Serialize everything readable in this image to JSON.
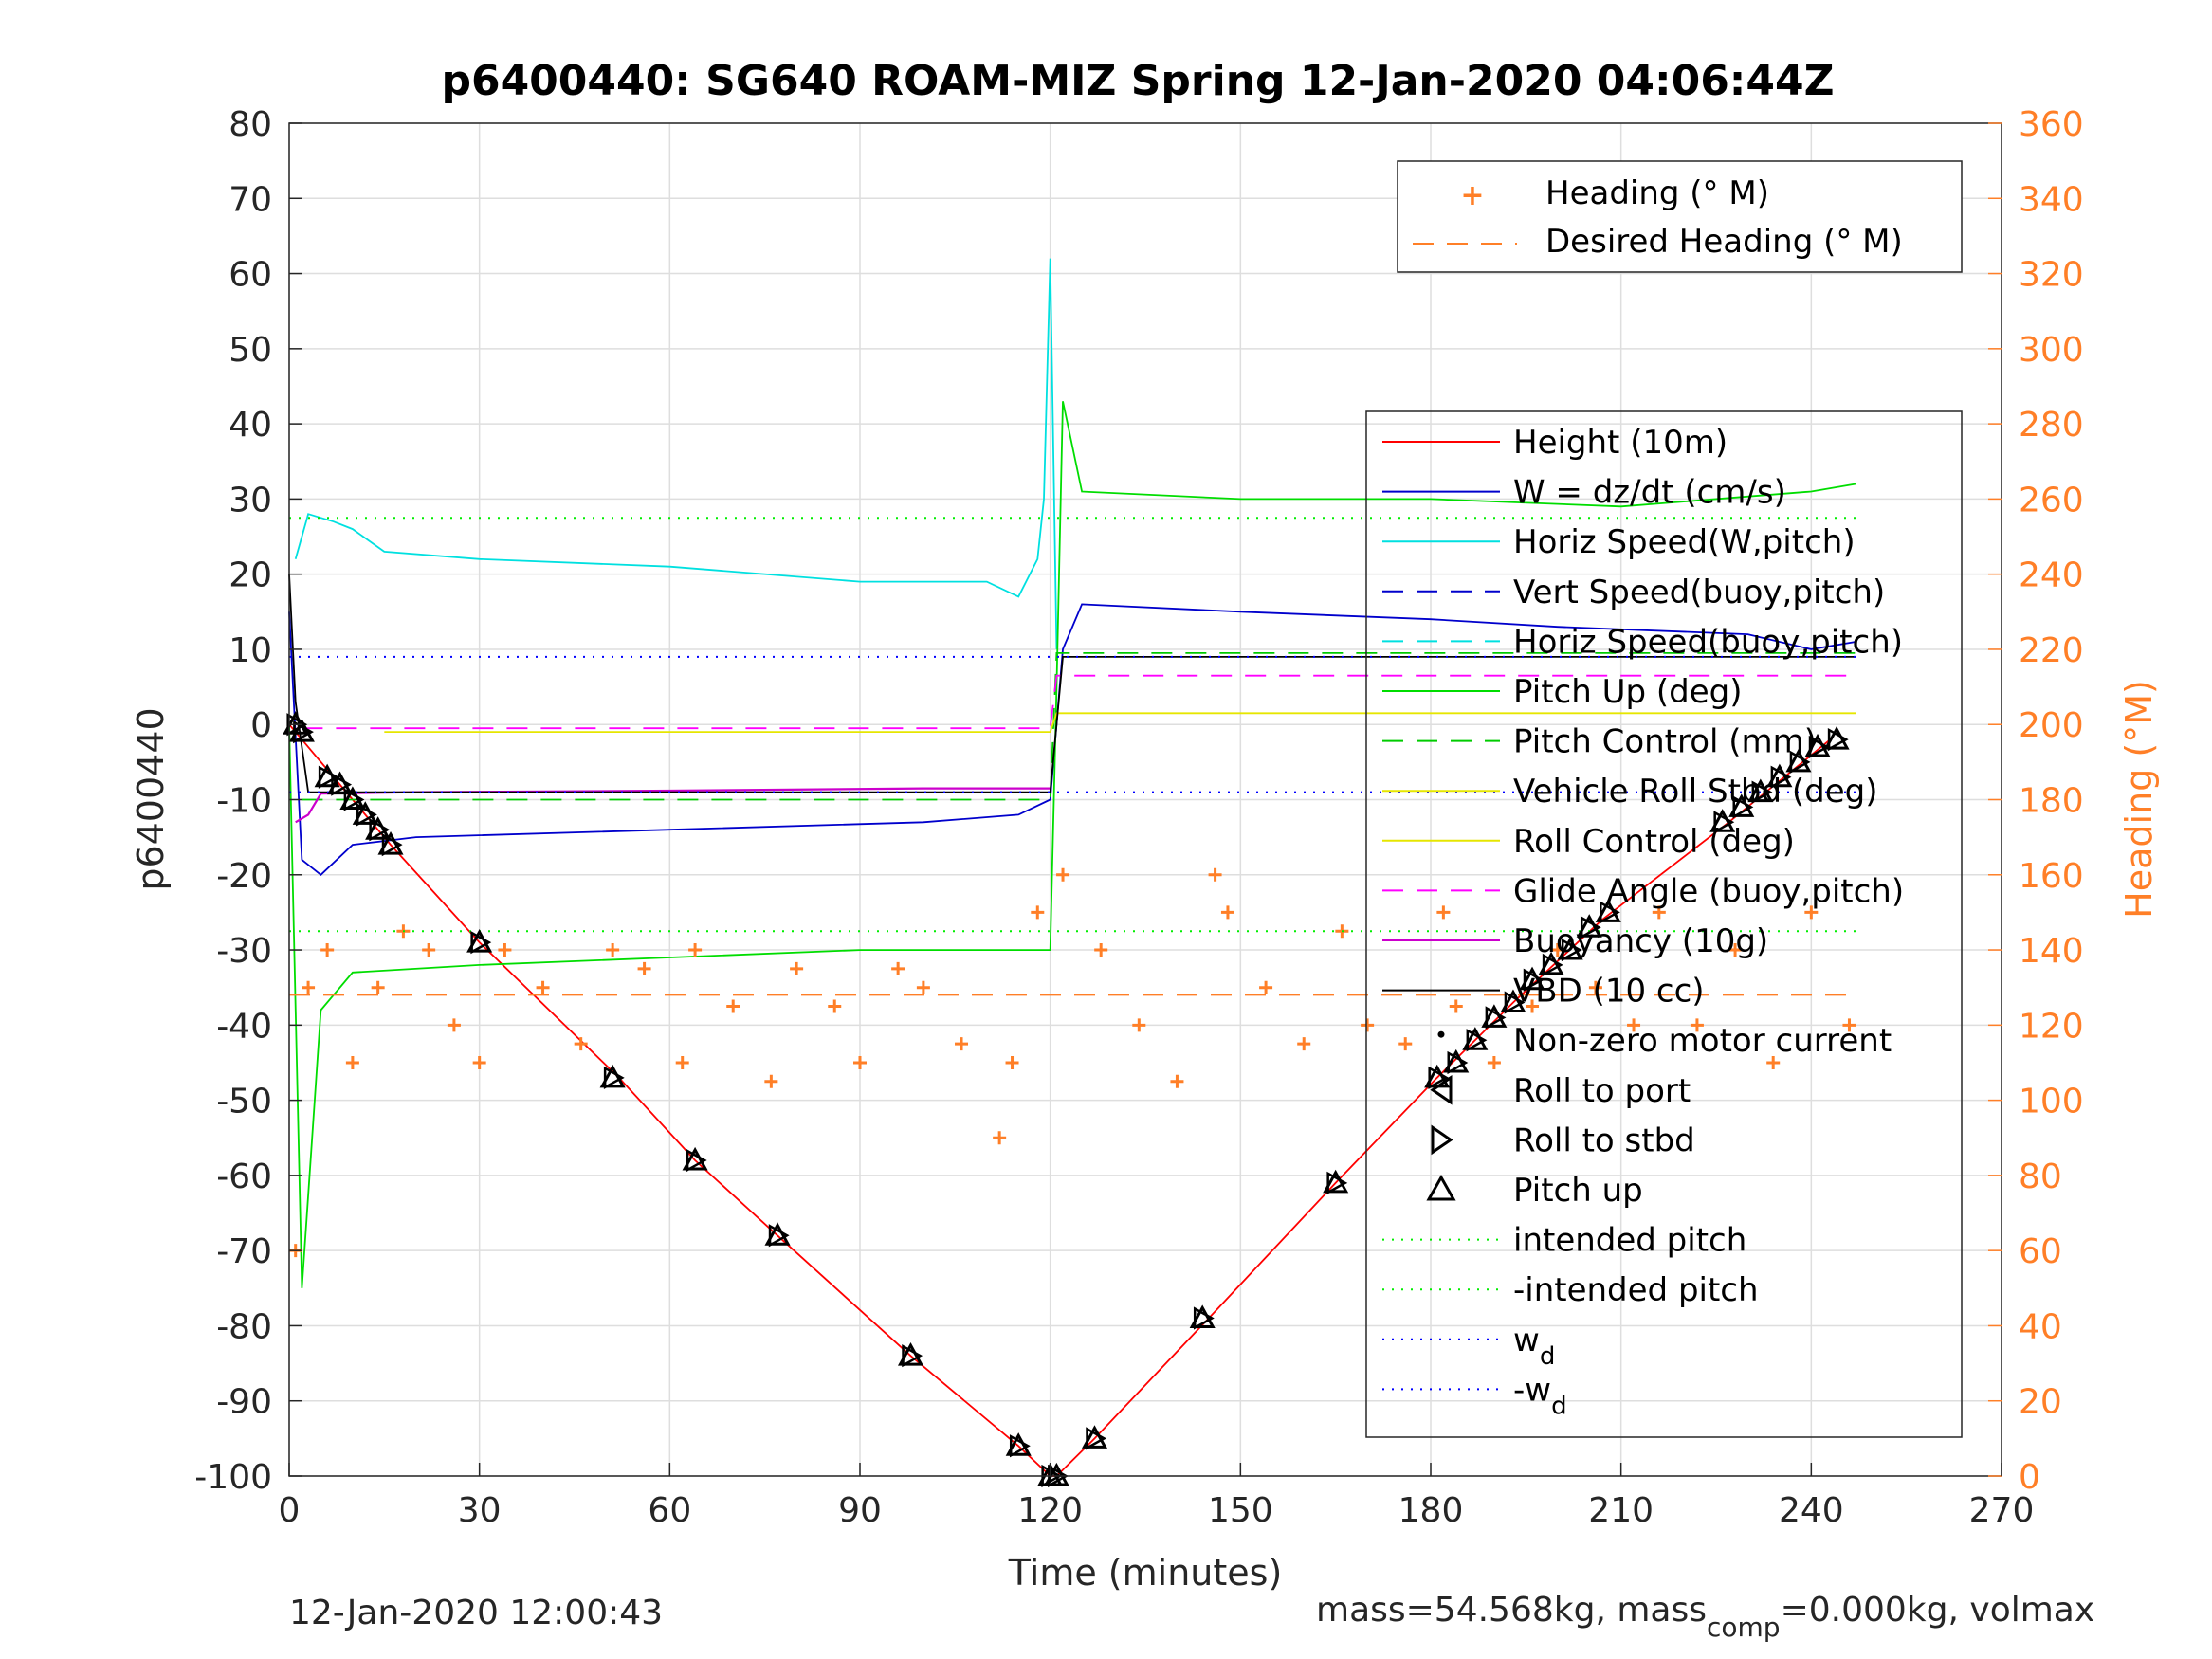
{
  "figure": {
    "title": "p6400440: SG640 ROAM-MIZ Spring 12-Jan-2020 04:06:44Z",
    "footer_left": "12-Jan-2020 12:00:43",
    "footer_right_prefix": "mass=54.568kg, mass",
    "footer_right_sub": "comp",
    "footer_right_suffix": "=0.000kg, volmax"
  },
  "chart_data": {
    "type": "line",
    "title": "p6400440: SG640 ROAM-MIZ Spring 12-Jan-2020 04:06:44Z",
    "xlabel": "Time (minutes)",
    "ylabel": "p6400440",
    "y2label": "Heading (°M)",
    "xlim": [
      0,
      270
    ],
    "ylim": [
      -100,
      80
    ],
    "y2lim": [
      0,
      360
    ],
    "xticks": [
      0,
      30,
      60,
      90,
      120,
      150,
      180,
      210,
      240,
      270
    ],
    "yticks": [
      -100,
      -90,
      -80,
      -70,
      -60,
      -50,
      -40,
      -30,
      -20,
      -10,
      0,
      10,
      20,
      30,
      40,
      50,
      60,
      70,
      80
    ],
    "y2ticks": [
      0,
      20,
      40,
      60,
      80,
      100,
      120,
      140,
      160,
      180,
      200,
      220,
      240,
      260,
      280,
      300,
      320,
      340,
      360
    ],
    "grid": true,
    "colors": {
      "height": "#ff0000",
      "w": "#0000cc",
      "horiz_speed": "#00e0e0",
      "pitch": "#00dd00",
      "roll": "#ffff00",
      "glide": "#ff00ff",
      "buoyancy": "#cc00cc",
      "vbd": "#000000",
      "heading": "#ff7f27",
      "wd": "#0000ff",
      "intended": "#00ee00"
    },
    "legend_heading": {
      "position": "top-right",
      "entries": [
        "Heading (° M)",
        "Desired Heading (° M)"
      ]
    },
    "legend_main": {
      "position": "right",
      "entries": [
        "Height (10m)",
        "W = dz/dt (cm/s)",
        "Horiz Speed(W,pitch)",
        "Vert Speed(buoy,pitch)",
        "Horiz Speed(buoy,pitch)",
        "Pitch Up (deg)",
        "Pitch Control (mm)",
        "Vehicle Roll Stbd (deg)",
        "Roll Control (deg)",
        "Glide Angle (buoy,pitch)",
        "Buoyancy (10g)",
        "VBD (10 cc)",
        "Non-zero motor current",
        "Roll to port",
        "Roll to stbd",
        "Pitch up",
        "intended pitch",
        "-intended pitch",
        "w_d",
        "-w_d"
      ]
    },
    "series": [
      {
        "name": "Height (10m)",
        "axis": "left",
        "x": [
          0,
          2,
          10,
          16,
          30,
          52,
          64,
          77,
          98,
          115,
          120,
          121,
          127,
          145,
          165,
          181,
          193,
          207,
          227,
          243
        ],
        "y": [
          0,
          -2,
          -10,
          -16,
          -29,
          -47,
          -58,
          -68,
          -84,
          -96,
          -100,
          -100,
          -95,
          -79,
          -61,
          -47,
          -37,
          -26,
          -13,
          -2
        ]
      },
      {
        "name": "W = dz/dt (cm/s)",
        "axis": "left",
        "x": [
          0,
          2,
          5,
          10,
          20,
          60,
          100,
          115,
          120,
          122,
          125,
          150,
          180,
          200,
          230,
          240,
          247
        ],
        "y": [
          15,
          -18,
          -20,
          -16,
          -15,
          -14,
          -13,
          -12,
          -10,
          10,
          16,
          15,
          14,
          13,
          12,
          10,
          11
        ]
      },
      {
        "name": "Horiz Speed(W,pitch)",
        "axis": "left",
        "x": [
          1,
          3,
          7,
          10,
          15,
          30,
          60,
          90,
          110,
          115,
          118,
          119,
          120,
          121
        ],
        "y": [
          22,
          28,
          27,
          26,
          23,
          22,
          21,
          19,
          19,
          17,
          22,
          30,
          62,
          10
        ]
      },
      {
        "name": "Pitch Up (deg)",
        "axis": "left",
        "x": [
          0,
          2,
          5,
          10,
          30,
          60,
          90,
          115,
          120,
          121,
          122,
          125,
          150,
          180,
          210,
          240,
          247
        ],
        "y": [
          0,
          -75,
          -38,
          -33,
          -32,
          -31,
          -30,
          -30,
          -30,
          5,
          43,
          31,
          30,
          30,
          29,
          31,
          32
        ]
      },
      {
        "name": "Pitch Control (mm)",
        "axis": "left",
        "x": [
          2,
          120,
          121,
          247
        ],
        "y": [
          -10,
          -10,
          9.5,
          9.5
        ]
      },
      {
        "name": "Vehicle Roll Stbd (deg)",
        "axis": "left",
        "x": [
          15,
          120,
          121,
          247
        ],
        "y": [
          -1,
          -1,
          1.5,
          1.5
        ]
      },
      {
        "name": "Glide Angle (buoy,pitch)",
        "axis": "left",
        "x": [
          2,
          120,
          121,
          247
        ],
        "y": [
          -0.5,
          -0.5,
          6.5,
          6.5
        ]
      },
      {
        "name": "Buoyancy (10g)",
        "axis": "left",
        "x": [
          1,
          3,
          5,
          20,
          60,
          100,
          120
        ],
        "y": [
          -13,
          -12,
          -9.2,
          -9,
          -8.8,
          -8.5,
          -8.5
        ]
      },
      {
        "name": "VBD (10 cc)",
        "axis": "left",
        "x": [
          0,
          1,
          3,
          10,
          60,
          119,
          120,
          122,
          247
        ],
        "y": [
          20,
          3,
          -9,
          -9,
          -9,
          -9,
          -9,
          9,
          9
        ]
      },
      {
        "name": "Heading (° M)",
        "axis": "right",
        "x": [
          1,
          3,
          6,
          10,
          14,
          18,
          22,
          26,
          30,
          34,
          40,
          46,
          51,
          56,
          62,
          64,
          70,
          76,
          80,
          86,
          90,
          96,
          100,
          106,
          112,
          114,
          118,
          122,
          128,
          134,
          140,
          146,
          148,
          154,
          160,
          166,
          170,
          176,
          182,
          184,
          190,
          196,
          200,
          206,
          212,
          216,
          222,
          228,
          234,
          240,
          246
        ],
        "y": [
          60,
          130,
          140,
          110,
          130,
          145,
          140,
          120,
          110,
          140,
          130,
          115,
          140,
          135,
          110,
          140,
          125,
          105,
          135,
          125,
          110,
          135,
          130,
          115,
          90,
          110,
          150,
          160,
          140,
          120,
          105,
          160,
          150,
          130,
          115,
          145,
          120,
          115,
          150,
          125,
          110,
          125,
          140,
          130,
          120,
          150,
          120,
          140,
          110,
          150,
          120
        ]
      },
      {
        "name": "Desired Heading (° M)",
        "axis": "right",
        "x": [
          0,
          247
        ],
        "y": [
          128,
          128
        ]
      },
      {
        "name": "intended pitch",
        "axis": "left",
        "x": [
          0,
          247
        ],
        "y": [
          27.5,
          27.5
        ]
      },
      {
        "name": "-intended pitch",
        "axis": "left",
        "x": [
          0,
          247
        ],
        "y": [
          -27.5,
          -27.5
        ]
      },
      {
        "name": "w_d",
        "axis": "left",
        "x": [
          0,
          247
        ],
        "y": [
          9,
          9
        ]
      },
      {
        "name": "-w_d",
        "axis": "left",
        "x": [
          0,
          247
        ],
        "y": [
          -9,
          -9
        ]
      }
    ],
    "markers": {
      "pitch_up": [
        [
          1,
          0
        ],
        [
          2,
          -1
        ],
        [
          6,
          -7
        ],
        [
          8,
          -8
        ],
        [
          10,
          -10
        ],
        [
          12,
          -12
        ],
        [
          14,
          -14
        ],
        [
          16,
          -16
        ],
        [
          30,
          -29
        ],
        [
          51,
          -47
        ],
        [
          64,
          -58
        ],
        [
          77,
          -68
        ],
        [
          98,
          -84
        ],
        [
          115,
          -96
        ],
        [
          120,
          -100
        ],
        [
          121,
          -100
        ],
        [
          127,
          -95
        ],
        [
          144,
          -79
        ],
        [
          165,
          -61
        ],
        [
          181,
          -47
        ],
        [
          184,
          -45
        ],
        [
          187,
          -42
        ],
        [
          190,
          -39
        ],
        [
          193,
          -37
        ],
        [
          196,
          -34
        ],
        [
          199,
          -32
        ],
        [
          202,
          -30
        ],
        [
          205,
          -27
        ],
        [
          208,
          -25
        ],
        [
          226,
          -13
        ],
        [
          229,
          -11
        ],
        [
          232,
          -9
        ],
        [
          235,
          -7
        ],
        [
          238,
          -5
        ],
        [
          241,
          -3
        ],
        [
          244,
          -2
        ]
      ]
    }
  }
}
